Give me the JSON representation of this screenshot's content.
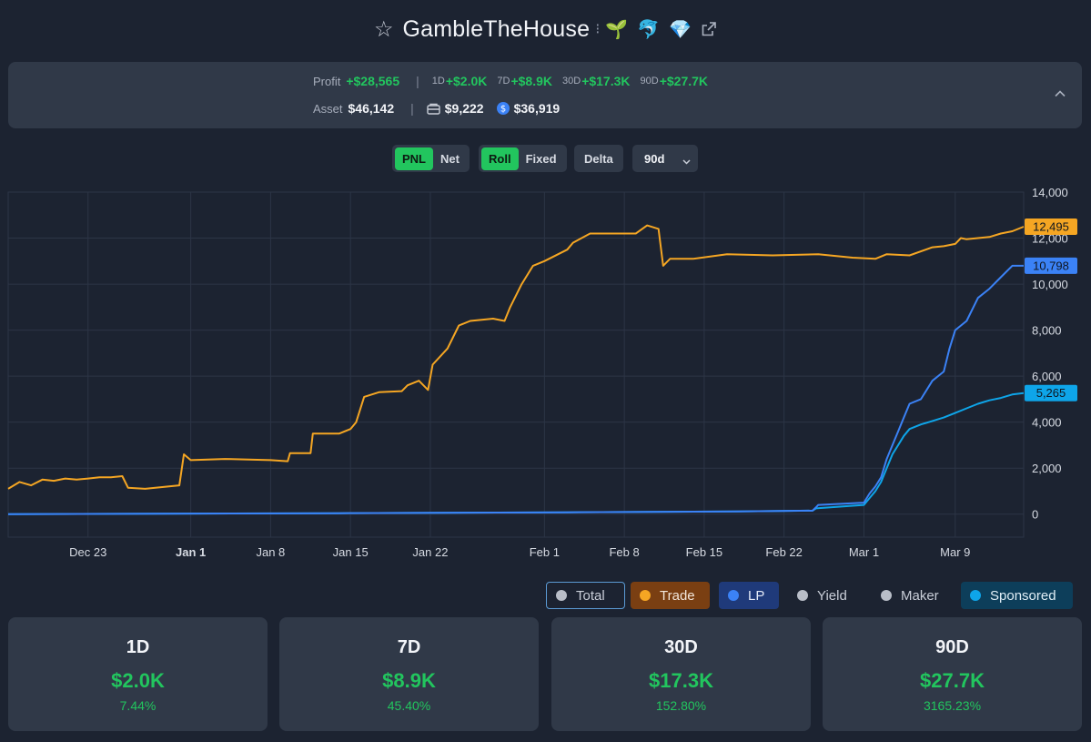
{
  "header": {
    "title": "GambleTheHouse",
    "badges": [
      "🌱",
      "🐬",
      "💎"
    ]
  },
  "summary": {
    "profit_label": "Profit",
    "profit_value": "+$28,565",
    "periods": [
      {
        "label": "1D",
        "value": "+$2.0K"
      },
      {
        "label": "7D",
        "value": "+$8.9K"
      },
      {
        "label": "30D",
        "value": "+$17.3K"
      },
      {
        "label": "90D",
        "value": "+$27.7K"
      }
    ],
    "asset_label": "Asset",
    "asset_value": "$46,142",
    "wallet_value": "$9,222",
    "coin_value": "$36,919"
  },
  "controls": {
    "pnl": "PNL",
    "net": "Net",
    "roll": "Roll",
    "fixed": "Fixed",
    "delta": "Delta",
    "range": "90d"
  },
  "legend": {
    "total": "Total",
    "trade": "Trade",
    "lp": "LP",
    "yield": "Yield",
    "maker": "Maker",
    "sponsored": "Sponsored"
  },
  "cards": [
    {
      "period": "1D",
      "value": "$2.0K",
      "percent": "7.44%"
    },
    {
      "period": "7D",
      "value": "$8.9K",
      "percent": "45.40%"
    },
    {
      "period": "30D",
      "value": "$17.3K",
      "percent": "152.80%"
    },
    {
      "period": "90D",
      "value": "$27.7K",
      "percent": "3165.23%"
    }
  ],
  "colors": {
    "trade": "#f5a623",
    "lp": "#3b82f6",
    "sponsored": "#0ea5e9",
    "green": "#22c55e"
  },
  "chart_data": {
    "type": "line",
    "ylim": [
      -1000,
      14000
    ],
    "y_ticks": [
      "0",
      "2,000",
      "4,000",
      "6,000",
      "8,000",
      "10,000",
      "12,000",
      "14,000"
    ],
    "x_ticks": [
      "Dec 23",
      "Jan 1",
      "Jan 8",
      "Jan 15",
      "Jan 22",
      "Feb 1",
      "Feb 8",
      "Feb 15",
      "Feb 22",
      "Mar 1",
      "Mar 9"
    ],
    "x_days": [
      -82,
      -73,
      -66,
      -59,
      -52,
      -42,
      -35,
      -28,
      -21,
      -14,
      -6
    ],
    "series": [
      {
        "name": "Trade",
        "end_label": "12,495",
        "points": [
          [
            -89,
            1100
          ],
          [
            -88,
            1400
          ],
          [
            -87,
            1250
          ],
          [
            -86,
            1500
          ],
          [
            -85,
            1450
          ],
          [
            -84,
            1550
          ],
          [
            -83,
            1500
          ],
          [
            -82,
            1550
          ],
          [
            -81,
            1600
          ],
          [
            -80,
            1600
          ],
          [
            -79,
            1650
          ],
          [
            -78.5,
            1150
          ],
          [
            -77,
            1100
          ],
          [
            -75,
            1200
          ],
          [
            -74,
            1250
          ],
          [
            -73.6,
            2600
          ],
          [
            -73,
            2350
          ],
          [
            -70,
            2400
          ],
          [
            -66,
            2350
          ],
          [
            -64.5,
            2300
          ],
          [
            -64.3,
            2650
          ],
          [
            -62.5,
            2650
          ],
          [
            -62.3,
            3500
          ],
          [
            -60,
            3500
          ],
          [
            -59,
            3700
          ],
          [
            -58.5,
            4000
          ],
          [
            -57.8,
            5100
          ],
          [
            -56.5,
            5300
          ],
          [
            -54.5,
            5350
          ],
          [
            -54,
            5600
          ],
          [
            -53,
            5800
          ],
          [
            -52.2,
            5400
          ],
          [
            -51.8,
            6500
          ],
          [
            -50.5,
            7200
          ],
          [
            -49.5,
            8200
          ],
          [
            -48.5,
            8400
          ],
          [
            -46.5,
            8500
          ],
          [
            -45.5,
            8400
          ],
          [
            -45,
            9000
          ],
          [
            -44,
            10000
          ],
          [
            -43,
            10800
          ],
          [
            -42,
            11000
          ],
          [
            -40,
            11500
          ],
          [
            -39.5,
            11800
          ],
          [
            -38,
            12200
          ],
          [
            -34,
            12200
          ],
          [
            -33,
            12550
          ],
          [
            -32,
            12400
          ],
          [
            -31.6,
            10800
          ],
          [
            -31,
            11100
          ],
          [
            -29,
            11100
          ],
          [
            -26,
            11300
          ],
          [
            -22,
            11250
          ],
          [
            -18,
            11300
          ],
          [
            -15,
            11150
          ],
          [
            -13,
            11100
          ],
          [
            -12,
            11300
          ],
          [
            -10,
            11250
          ],
          [
            -8,
            11600
          ],
          [
            -7,
            11650
          ],
          [
            -6,
            11750
          ],
          [
            -5.5,
            12000
          ],
          [
            -5,
            11950
          ],
          [
            -3,
            12050
          ],
          [
            -2,
            12200
          ],
          [
            -1,
            12300
          ],
          [
            0,
            12495
          ]
        ]
      },
      {
        "name": "LP",
        "end_label": "10,798",
        "points": [
          [
            -89,
            0
          ],
          [
            -60,
            40
          ],
          [
            -40,
            80
          ],
          [
            -25,
            120
          ],
          [
            -18.5,
            150
          ],
          [
            -18.2,
            300
          ],
          [
            -18,
            400
          ],
          [
            -16,
            450
          ],
          [
            -14,
            500
          ],
          [
            -13.5,
            900
          ],
          [
            -13,
            1200
          ],
          [
            -12.5,
            1600
          ],
          [
            -12,
            2400
          ],
          [
            -11.5,
            3000
          ],
          [
            -11,
            3600
          ],
          [
            -10.5,
            4200
          ],
          [
            -10,
            4800
          ],
          [
            -9,
            5000
          ],
          [
            -8,
            5800
          ],
          [
            -7,
            6200
          ],
          [
            -6.5,
            7200
          ],
          [
            -6,
            8000
          ],
          [
            -5,
            8400
          ],
          [
            -4,
            9400
          ],
          [
            -3,
            9800
          ],
          [
            -2,
            10300
          ],
          [
            -1,
            10800
          ],
          [
            0,
            10798
          ]
        ]
      },
      {
        "name": "Sponsored",
        "end_label": "5,265",
        "points": [
          [
            -89,
            0
          ],
          [
            -60,
            40
          ],
          [
            -40,
            80
          ],
          [
            -25,
            120
          ],
          [
            -18.5,
            150
          ],
          [
            -18.2,
            250
          ],
          [
            -14,
            400
          ],
          [
            -13.5,
            700
          ],
          [
            -13,
            1000
          ],
          [
            -12.5,
            1400
          ],
          [
            -12,
            2000
          ],
          [
            -11.5,
            2600
          ],
          [
            -11,
            3000
          ],
          [
            -10.5,
            3400
          ],
          [
            -10,
            3700
          ],
          [
            -9,
            3900
          ],
          [
            -8,
            4050
          ],
          [
            -7,
            4200
          ],
          [
            -6,
            4400
          ],
          [
            -5,
            4600
          ],
          [
            -4,
            4800
          ],
          [
            -3,
            4950
          ],
          [
            -2,
            5050
          ],
          [
            -1,
            5200
          ],
          [
            0,
            5265
          ]
        ]
      }
    ]
  }
}
